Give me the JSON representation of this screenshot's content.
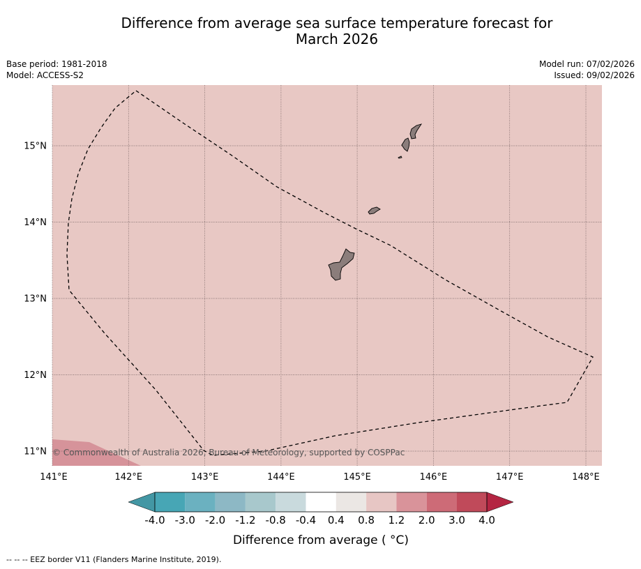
{
  "header": {
    "title_line1": "Difference from average sea surface temperature forecast for",
    "title_line2": "March 2026",
    "base_period": "Base period: 1981-2018",
    "model": "Model: ACCESS-S2",
    "model_run": "Model run: 07/02/2026",
    "issued": "Issued: 09/02/2026"
  },
  "map": {
    "lat_labels": [
      "15°N",
      "14°N",
      "13°N",
      "12°N",
      "11°N"
    ],
    "lon_labels": [
      "141°E",
      "142°E",
      "143°E",
      "144°E",
      "145°E",
      "146°E",
      "147°E",
      "148°E"
    ],
    "copyright": "© Commonwealth of Australia 2026, Bureau of Meteorology, supported by COSPPac"
  },
  "colorbar": {
    "tick_labels": [
      "-4.0",
      "-3.0",
      "-2.0",
      "-1.2",
      "-0.8",
      "-0.4",
      "0.4",
      "0.8",
      "1.2",
      "2.0",
      "3.0",
      "4.0"
    ],
    "colors": [
      "#4397a4",
      "#47a6b5",
      "#6bb1c0",
      "#8db8c5",
      "#a8c8cc",
      "#c9dadd",
      "#ffffff",
      "#ebe7e4",
      "#e7c6c4",
      "#d9939a",
      "#cd6b77",
      "#c04a5a",
      "#b42542"
    ],
    "label": "Difference from average ( °C)"
  },
  "legend": {
    "eez_label": "--  --  -- EEZ border V11 (Flanders Marine Institute, 2019)."
  }
}
